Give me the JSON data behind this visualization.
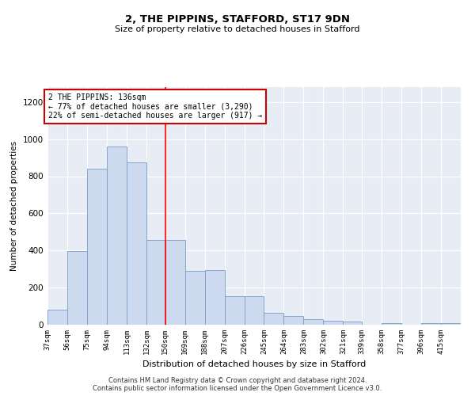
{
  "title1": "2, THE PIPPINS, STAFFORD, ST17 9DN",
  "title2": "Size of property relative to detached houses in Stafford",
  "xlabel": "Distribution of detached houses by size in Stafford",
  "ylabel": "Number of detached properties",
  "bar_color": "#ccd9ee",
  "bar_edge_color": "#7a9cc4",
  "background_color": "#e8ecf5",
  "annotation_box_color": "#ffffff",
  "annotation_border_color": "#cc0000",
  "red_line_x": 150,
  "annotation_text": "2 THE PIPPINS: 136sqm\n← 77% of detached houses are smaller (3,290)\n22% of semi-detached houses are larger (917) →",
  "categories": [
    "37sqm",
    "56sqm",
    "75sqm",
    "94sqm",
    "113sqm",
    "132sqm",
    "150sqm",
    "169sqm",
    "188sqm",
    "207sqm",
    "226sqm",
    "245sqm",
    "264sqm",
    "283sqm",
    "302sqm",
    "321sqm",
    "339sqm",
    "358sqm",
    "377sqm",
    "396sqm",
    "415sqm"
  ],
  "bin_edges": [
    37,
    56,
    75,
    94,
    113,
    132,
    150,
    169,
    188,
    207,
    226,
    245,
    264,
    283,
    302,
    321,
    339,
    358,
    377,
    396,
    415,
    434
  ],
  "values": [
    80,
    395,
    840,
    960,
    875,
    455,
    455,
    290,
    295,
    155,
    155,
    65,
    48,
    30,
    20,
    15,
    0,
    10,
    0,
    10,
    10
  ],
  "ylim": [
    0,
    1280
  ],
  "yticks": [
    0,
    200,
    400,
    600,
    800,
    1000,
    1200
  ],
  "footer1": "Contains HM Land Registry data © Crown copyright and database right 2024.",
  "footer2": "Contains public sector information licensed under the Open Government Licence v3.0."
}
